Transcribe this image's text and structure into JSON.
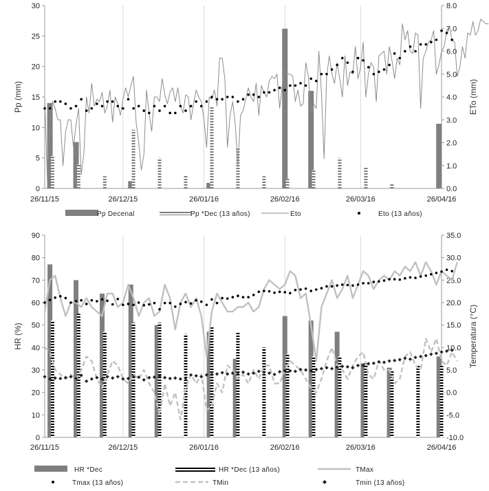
{
  "chart_data": [
    {
      "type": "bar",
      "x_type": "date",
      "x_ticks": [
        {
          "date": "2015-11-26",
          "label": "26/11/15"
        },
        {
          "date": "2015-12-26",
          "label": "26/12/15"
        },
        {
          "date": "2016-01-26",
          "label": "26/01/16"
        },
        {
          "date": "2016-02-26",
          "label": "26/02/16"
        },
        {
          "date": "2016-03-26",
          "label": "26/03/16"
        },
        {
          "date": "2016-04-26",
          "label": "26/04/16"
        }
      ],
      "xlim": [
        "2015-11-26",
        "2016-04-26"
      ],
      "ylabel_left": "Pp (mm)",
      "ylim_left": [
        0,
        30
      ],
      "yticks_left": [
        0,
        5,
        10,
        15,
        20,
        25,
        30
      ],
      "ylabel_right": "ETo  (mm)",
      "ylim_right": [
        0,
        8
      ],
      "yticks_right": [
        "0.0",
        "1.0",
        "2.0",
        "3.0",
        "4.0",
        "5.0",
        "6.0",
        "7.0",
        "8.0"
      ],
      "grid": "vertical",
      "legend_position": "bottom",
      "series": [
        {
          "name": "Pp Decenal",
          "type": "bar",
          "axis": "left",
          "color": "#7f7f7f",
          "x": [
            "2015-11-28",
            "2015-12-08",
            "2015-12-29",
            "2016-01-28",
            "2016-02-26",
            "2016-03-07",
            "2016-04-25"
          ],
          "values": [
            14,
            7.6,
            1.2,
            0.9,
            26.2,
            16,
            10.6
          ]
        },
        {
          "name": "Pp *Dec (13 años)",
          "type": "bar",
          "axis": "left",
          "color": "#7f7f7f",
          "pattern": "dotted",
          "x": [
            "2015-11-29",
            "2015-12-09",
            "2015-12-19",
            "2015-12-30",
            "2016-01-09",
            "2016-01-19",
            "2016-01-29",
            "2016-02-08",
            "2016-02-18",
            "2016-02-27",
            "2016-03-08",
            "2016-03-18",
            "2016-03-28",
            "2016-04-07"
          ],
          "values": [
            5.3,
            3.9,
            2.0,
            9.6,
            5.0,
            2.2,
            13.5,
            6.7,
            2.0,
            1.6,
            3.0,
            5.0,
            3.4,
            0.9
          ]
        },
        {
          "name": "Eto",
          "type": "line",
          "axis": "right",
          "color": "#8c8c8c",
          "x_start": "2015-11-26",
          "values": [
            4.0,
            0.4,
            3.0,
            3.8,
            3.5,
            3.0,
            3.0,
            1.0,
            2.5,
            3.0,
            3.0,
            1.8,
            2.8,
            3.5,
            0.6,
            1.5,
            4.0,
            3.3,
            4.6,
            3.6,
            3.9,
            3.8,
            4.2,
            3.3,
            3.6,
            4.3,
            2.9,
            4.0,
            3.7,
            3.2,
            3.9,
            4.4,
            4.0,
            4.5,
            4.9,
            2.9,
            2.0,
            0.8,
            1.5,
            4.3,
            3.3,
            2.5,
            4.0,
            4.0,
            3.8,
            4.8,
            4.1,
            3.7,
            4.2,
            4.4,
            3.8,
            4.4,
            3.6,
            3.3,
            4.1,
            4.0,
            3.0,
            3.7,
            4.3,
            4.0,
            3.8,
            3.0,
            1.8,
            4.0,
            3.9,
            4.3,
            3.6,
            5.7,
            5.7,
            4.8,
            1.8,
            3.2,
            3.8,
            2.8,
            1.0,
            3.2,
            3.4,
            3.9,
            4.4,
            4.0,
            3.8,
            4.6,
            3.2,
            4.5,
            4.2,
            4.0,
            4.7,
            4.9,
            4.8,
            5.0,
            3.5,
            4.5,
            5.2,
            5.0,
            5.0,
            4.9,
            3.8,
            4.3,
            3.6,
            3.7,
            5.5,
            4.9,
            3.3,
            3.7,
            3.5,
            6.0,
            4.2,
            1.3,
            4.9,
            5.8,
            5.0,
            4.6,
            5.5,
            4.8,
            4.0,
            5.8,
            4.5,
            5.1,
            5.0,
            6.2,
            4.8,
            5.3,
            6.4,
            4.0,
            5.0,
            5.5,
            5.3,
            3.8,
            5.8,
            5.9,
            6.0,
            5.0,
            6.2,
            5.6,
            4.8,
            5.7,
            5.4,
            7.2,
            6.5,
            6.9,
            6.0,
            5.9,
            6.8,
            6.7,
            3.5,
            5.7,
            6.0,
            6.4,
            6.5,
            6.9,
            5.0,
            5.4,
            6.0,
            6.2,
            6.9,
            7.1,
            6.5,
            6.4,
            4.9,
            5.3,
            6.2,
            5.7,
            6.8,
            6.7,
            7.3,
            6.7,
            6.9,
            7.4,
            7.3,
            7.2,
            7.2
          ]
        },
        {
          "name": "Eto (13 años)",
          "type": "scatter",
          "axis": "right",
          "color": "#000000",
          "x_start": "2015-11-26",
          "step_days": 2,
          "values": [
            3.5,
            3.5,
            3.8,
            3.8,
            3.7,
            3.5,
            3.6,
            3.9,
            3.4,
            3.5,
            3.7,
            3.6,
            3.8,
            3.8,
            3.6,
            3.5,
            3.9,
            3.5,
            3.6,
            3.4,
            3.3,
            3.6,
            3.4,
            3.6,
            3.3,
            3.3,
            3.6,
            3.4,
            3.6,
            3.8,
            3.6,
            3.8,
            4.0,
            3.9,
            3.9,
            4.0,
            4.0,
            3.8,
            3.9,
            4.1,
            4.1,
            4.0,
            4.2,
            4.2,
            4.3,
            4.4,
            4.3,
            4.5,
            4.5,
            4.6,
            4.5,
            4.8,
            4.7,
            5.0,
            5.0,
            5.2,
            5.4,
            5.7,
            5.5,
            5.1,
            5.7,
            5.6,
            5.3,
            5.0,
            5.1,
            5.2,
            5.4,
            5.9,
            5.7,
            6.0,
            6.2,
            6.0,
            6.3,
            6.3,
            6.4,
            6.5,
            6.9,
            6.8,
            6.5
          ]
        }
      ]
    },
    {
      "type": "bar",
      "x_type": "date",
      "x_ticks": [
        {
          "date": "2015-11-26",
          "label": "26/11/15"
        },
        {
          "date": "2015-12-26",
          "label": "26/12/15"
        },
        {
          "date": "2016-01-26",
          "label": "26/01/16"
        },
        {
          "date": "2016-02-26",
          "label": "26/02/16"
        },
        {
          "date": "2016-03-26",
          "label": "26/03/16"
        },
        {
          "date": "2016-04-26",
          "label": "26/04/16"
        }
      ],
      "xlim": [
        "2015-11-26",
        "2016-04-26"
      ],
      "ylabel_left": "HR (%)",
      "ylim_left": [
        0,
        90
      ],
      "yticks_left": [
        0,
        10,
        20,
        30,
        40,
        50,
        60,
        70,
        80,
        90
      ],
      "ylabel_right": "Temperatura (°C)",
      "ylim_right": [
        -10,
        35
      ],
      "yticks_right": [
        "-10.0",
        "-5.0",
        "0.0",
        "5.0",
        "10.0",
        "15.0",
        "20.0",
        "25.0",
        "30.0",
        "35.0"
      ],
      "grid": "vertical",
      "legend_position": "bottom",
      "series": [
        {
          "name": "HR *Dec",
          "type": "bar",
          "axis": "left",
          "color": "#7f7f7f",
          "x": [
            "2015-11-28",
            "2015-12-08",
            "2015-12-18",
            "2015-12-29",
            "2016-01-08",
            "2016-01-28",
            "2016-02-07",
            "2016-02-26",
            "2016-03-07",
            "2016-03-17",
            "2016-03-27",
            "2016-04-06",
            "2016-04-25"
          ],
          "values": [
            77,
            70,
            64,
            68,
            50,
            47,
            35,
            54,
            52,
            47,
            33,
            31,
            36
          ]
        },
        {
          "name": "HR *Dec (13 años)",
          "type": "bar",
          "axis": "left",
          "color": "#000000",
          "pattern": "dotted",
          "x": [
            "2015-11-29",
            "2015-12-09",
            "2015-12-19",
            "2015-12-30",
            "2016-01-09",
            "2016-01-19",
            "2016-01-29",
            "2016-02-08",
            "2016-02-18",
            "2016-02-27",
            "2016-03-08",
            "2016-03-18",
            "2016-03-28",
            "2016-04-07",
            "2016-04-17",
            "2016-04-26"
          ],
          "values": [
            52,
            55,
            47,
            51,
            51,
            46,
            49,
            47,
            40,
            37,
            36,
            36,
            33,
            30,
            32,
            32
          ]
        },
        {
          "name": "TMax",
          "type": "line",
          "axis": "right",
          "color": "#c0c0c0",
          "x_start": "2015-11-26",
          "step_days": 2,
          "values": [
            18,
            25,
            26,
            21,
            17,
            20,
            20,
            19,
            21,
            19,
            18,
            17,
            22,
            22,
            19,
            20,
            24,
            21,
            17,
            20,
            21,
            17,
            18,
            24,
            21,
            14,
            20,
            22,
            19,
            21,
            17,
            8,
            18,
            22,
            20,
            18,
            18,
            19,
            19,
            20,
            18,
            19,
            23,
            25,
            24,
            23,
            24,
            27,
            26,
            21,
            22,
            15,
            7,
            19,
            22,
            25,
            21,
            23,
            26,
            21,
            24,
            27,
            26,
            23,
            25,
            26,
            25,
            27,
            26,
            28,
            27,
            29,
            26,
            29,
            27,
            24,
            27,
            26,
            25,
            29
          ]
        },
        {
          "name": "Tmax (13 años)",
          "type": "scatter",
          "axis": "right",
          "color": "#000000",
          "x_start": "2015-11-26",
          "step_days": 2,
          "values": [
            20.0,
            20.6,
            21.1,
            21.4,
            21.0,
            20.0,
            20.3,
            20.5,
            19.7,
            20.5,
            20.3,
            20.7,
            20.4,
            19.6,
            20.8,
            19.5,
            19.7,
            19.5,
            20.0,
            19.4,
            19.6,
            19.9,
            18.5,
            19.9,
            19.9,
            19.1,
            19.7,
            20.1,
            19.8,
            20.5,
            20.2,
            19.5,
            20.7,
            19.9,
            21.0,
            20.9,
            21.2,
            21.5,
            21.2,
            21.2,
            21.7,
            22.4,
            22.6,
            22.5,
            22.2,
            22.4,
            22.3,
            22.1,
            22.8,
            22.9,
            23.1,
            22.6,
            22.9,
            23.2,
            23.6,
            23.6,
            23.8,
            24.0,
            23.9,
            23.8,
            24.0,
            24.3,
            24.3,
            24.6,
            24.7,
            24.9,
            25.2,
            25.2,
            25.1,
            25.4,
            25.6,
            25.5,
            25.8,
            26.0,
            26.3,
            26.6,
            26.9,
            27.3,
            27.0
          ]
        },
        {
          "name": "TMin",
          "type": "line",
          "axis": "right",
          "color": "#c0c0c0",
          "dash": true,
          "x_start": "2015-11-26",
          "step_days": 2,
          "values": [
            10,
            9,
            5,
            4,
            3,
            4,
            3,
            5,
            8,
            7,
            3,
            1,
            4,
            7,
            6,
            3,
            2,
            4,
            3,
            5,
            2,
            0,
            -5,
            2,
            -3,
            0,
            -6,
            1,
            4,
            2,
            4,
            -4,
            -3,
            2,
            0,
            6,
            5,
            3,
            4,
            2,
            5,
            3,
            6,
            6,
            2,
            2,
            5,
            7,
            6,
            5,
            3,
            1,
            0,
            3,
            7,
            10,
            6,
            5,
            3,
            6,
            8,
            9,
            4,
            3,
            7,
            5,
            5,
            2,
            3,
            8,
            9,
            6,
            5,
            12,
            9,
            12,
            7,
            6,
            9,
            7
          ]
        },
        {
          "name": "Tmin (13 años)",
          "type": "scatter",
          "axis": "right",
          "color": "#222222",
          "marker": "diamond",
          "x_start": "2015-11-26",
          "step_days": 2,
          "values": [
            3.5,
            3.0,
            3.2,
            3.1,
            3.3,
            3.5,
            3.1,
            3.8,
            2.5,
            3.0,
            3.3,
            3.0,
            3.5,
            3.2,
            3.5,
            3.0,
            3.1,
            3.5,
            3.4,
            2.8,
            3.3,
            3.4,
            3.6,
            3.3,
            3.1,
            3.2,
            3.0,
            3.2,
            3.9,
            3.7,
            3.5,
            3.9,
            4.0,
            4.1,
            4.4,
            4.1,
            4.3,
            4.4,
            4.5,
            4.1,
            4.3,
            4.7,
            4.5,
            4.3,
            4.0,
            4.6,
            4.8,
            4.8,
            4.7,
            5.1,
            5.0,
            4.8,
            5.1,
            5.3,
            5.5,
            5.3,
            5.6,
            5.8,
            5.7,
            5.5,
            6.0,
            6.0,
            6.4,
            6.5,
            6.8,
            6.7,
            7.0,
            7.1,
            7.3,
            7.6,
            7.4,
            7.8,
            8.0,
            8.2,
            8.5,
            8.7,
            9.0,
            9.2,
            9.4
          ]
        }
      ]
    }
  ]
}
